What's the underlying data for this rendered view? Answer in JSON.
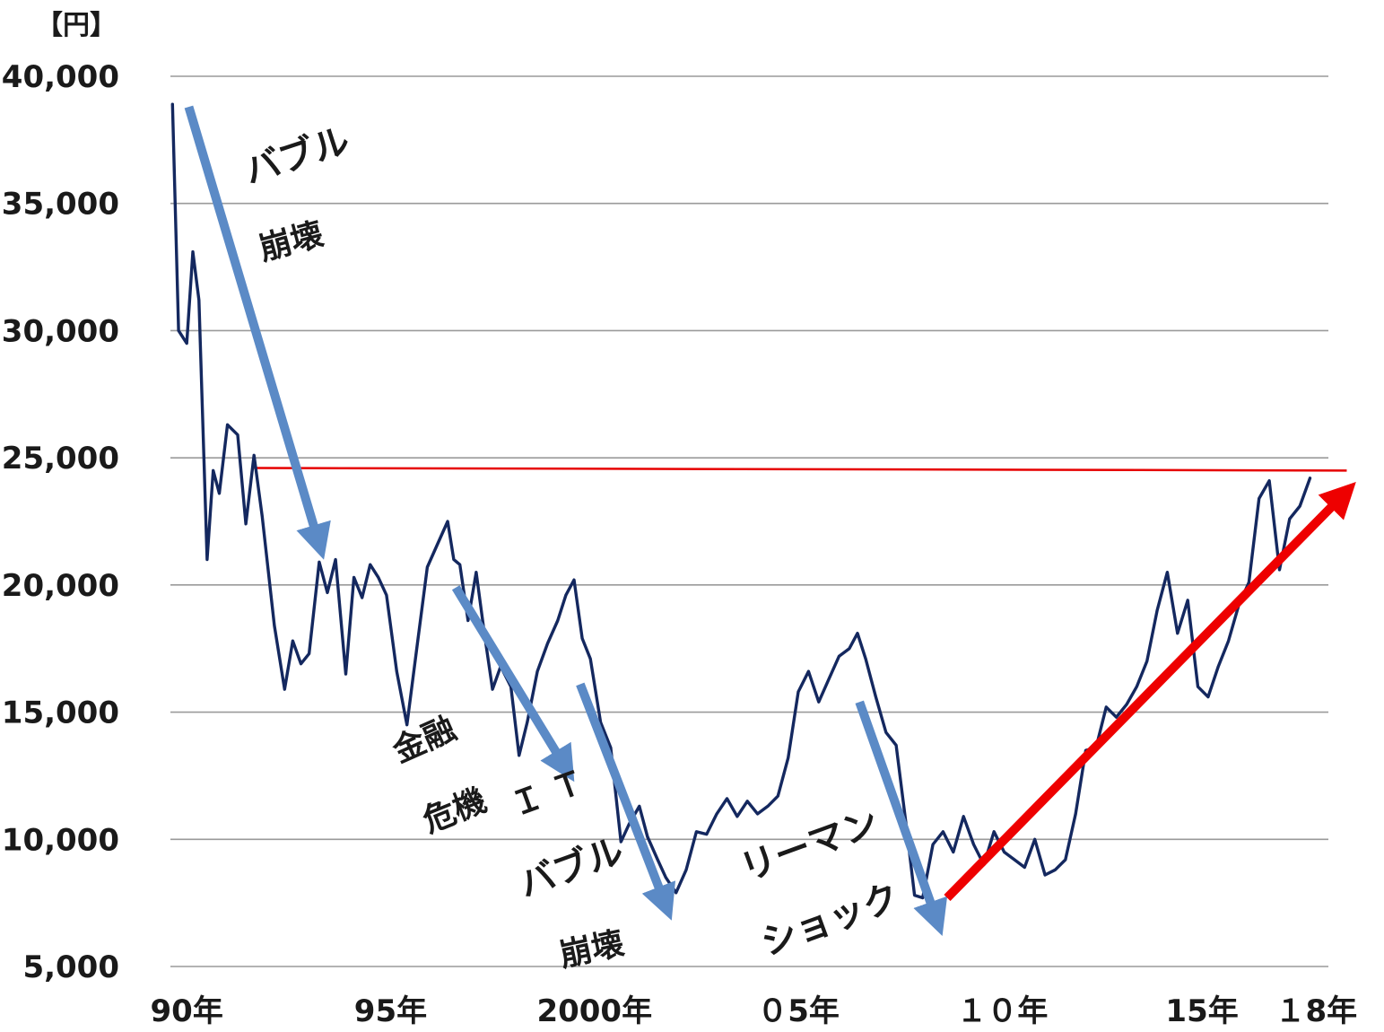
{
  "chart_data": {
    "type": "line",
    "y_unit_label": "【円】",
    "ylim": [
      5000,
      40000
    ],
    "y_ticks": [
      {
        "value": 5000,
        "label": "5,000"
      },
      {
        "value": 10000,
        "label": "10,000"
      },
      {
        "value": 15000,
        "label": "15,000"
      },
      {
        "value": 20000,
        "label": "20,000"
      },
      {
        "value": 25000,
        "label": "25,000"
      },
      {
        "value": 30000,
        "label": "30,000"
      },
      {
        "value": 35000,
        "label": "35,000"
      },
      {
        "value": 40000,
        "label": "40,000"
      }
    ],
    "xlim": [
      1989.9,
      2018.3
    ],
    "x_ticks": [
      {
        "value": 1990.3,
        "label": "90年"
      },
      {
        "value": 1995.3,
        "label": "95年"
      },
      {
        "value": 2000.3,
        "label": "2000年"
      },
      {
        "value": 2005.3,
        "label": "０5年"
      },
      {
        "value": 2010.3,
        "label": "１０年"
      },
      {
        "value": 2015.2,
        "label": "15年"
      },
      {
        "value": 2018.0,
        "label": "１8年"
      }
    ],
    "grid": true,
    "legend": "none",
    "series": [
      {
        "color": "#14285f",
        "points": [
          [
            1989.95,
            38900
          ],
          [
            1990.1,
            30000
          ],
          [
            1990.3,
            29500
          ],
          [
            1990.45,
            33100
          ],
          [
            1990.6,
            31200
          ],
          [
            1990.8,
            21000
          ],
          [
            1990.95,
            24500
          ],
          [
            1991.1,
            23600
          ],
          [
            1991.3,
            26300
          ],
          [
            1991.55,
            25900
          ],
          [
            1991.75,
            22400
          ],
          [
            1991.95,
            25100
          ],
          [
            1992.15,
            22700
          ],
          [
            1992.45,
            18400
          ],
          [
            1992.7,
            15900
          ],
          [
            1992.9,
            17800
          ],
          [
            1993.1,
            16900
          ],
          [
            1993.3,
            17300
          ],
          [
            1993.55,
            20900
          ],
          [
            1993.75,
            19700
          ],
          [
            1993.95,
            21000
          ],
          [
            1994.2,
            16500
          ],
          [
            1994.4,
            20300
          ],
          [
            1994.6,
            19500
          ],
          [
            1994.8,
            20800
          ],
          [
            1995.0,
            20300
          ],
          [
            1995.2,
            19600
          ],
          [
            1995.45,
            16600
          ],
          [
            1995.7,
            14500
          ],
          [
            1995.95,
            17600
          ],
          [
            1996.2,
            20700
          ],
          [
            1996.45,
            21600
          ],
          [
            1996.7,
            22500
          ],
          [
            1996.85,
            21000
          ],
          [
            1997.0,
            20800
          ],
          [
            1997.2,
            18600
          ],
          [
            1997.4,
            20500
          ],
          [
            1997.6,
            18100
          ],
          [
            1997.8,
            15900
          ],
          [
            1998.0,
            16800
          ],
          [
            1998.25,
            16000
          ],
          [
            1998.45,
            13300
          ],
          [
            1998.65,
            14600
          ],
          [
            1998.9,
            16600
          ],
          [
            1999.15,
            17700
          ],
          [
            1999.4,
            18600
          ],
          [
            1999.6,
            19600
          ],
          [
            1999.8,
            20200
          ],
          [
            2000.0,
            17900
          ],
          [
            2000.2,
            17100
          ],
          [
            2000.45,
            14600
          ],
          [
            2000.7,
            13600
          ],
          [
            2000.95,
            9900
          ],
          [
            2001.15,
            10600
          ],
          [
            2001.4,
            11300
          ],
          [
            2001.6,
            10100
          ],
          [
            2001.85,
            9200
          ],
          [
            2002.05,
            8500
          ],
          [
            2002.3,
            7900
          ],
          [
            2002.55,
            8800
          ],
          [
            2002.8,
            10300
          ],
          [
            2003.05,
            10200
          ],
          [
            2003.3,
            11000
          ],
          [
            2003.55,
            11600
          ],
          [
            2003.8,
            10900
          ],
          [
            2004.05,
            11500
          ],
          [
            2004.3,
            11000
          ],
          [
            2004.55,
            11300
          ],
          [
            2004.8,
            11700
          ],
          [
            2005.05,
            13200
          ],
          [
            2005.3,
            15800
          ],
          [
            2005.55,
            16600
          ],
          [
            2005.8,
            15400
          ],
          [
            2006.05,
            16300
          ],
          [
            2006.3,
            17200
          ],
          [
            2006.55,
            17500
          ],
          [
            2006.75,
            18100
          ],
          [
            2006.95,
            17100
          ],
          [
            2007.2,
            15600
          ],
          [
            2007.45,
            14200
          ],
          [
            2007.7,
            13700
          ],
          [
            2007.95,
            10500
          ],
          [
            2008.15,
            7800
          ],
          [
            2008.35,
            7700
          ],
          [
            2008.6,
            9800
          ],
          [
            2008.85,
            10300
          ],
          [
            2009.1,
            9500
          ],
          [
            2009.35,
            10900
          ],
          [
            2009.6,
            9800
          ],
          [
            2009.85,
            9000
          ],
          [
            2010.1,
            10300
          ],
          [
            2010.35,
            9500
          ],
          [
            2010.6,
            9200
          ],
          [
            2010.85,
            8900
          ],
          [
            2011.1,
            10000
          ],
          [
            2011.35,
            8600
          ],
          [
            2011.6,
            8800
          ],
          [
            2011.85,
            9200
          ],
          [
            2012.1,
            11000
          ],
          [
            2012.35,
            13500
          ],
          [
            2012.6,
            13600
          ],
          [
            2012.85,
            15200
          ],
          [
            2013.1,
            14800
          ],
          [
            2013.35,
            15300
          ],
          [
            2013.6,
            16000
          ],
          [
            2013.85,
            17000
          ],
          [
            2014.1,
            19000
          ],
          [
            2014.35,
            20500
          ],
          [
            2014.6,
            18100
          ],
          [
            2014.85,
            19400
          ],
          [
            2015.1,
            16000
          ],
          [
            2015.35,
            15600
          ],
          [
            2015.6,
            16800
          ],
          [
            2015.85,
            17800
          ],
          [
            2016.1,
            19200
          ],
          [
            2016.35,
            20100
          ],
          [
            2016.6,
            23400
          ],
          [
            2016.85,
            24100
          ],
          [
            2017.1,
            20600
          ],
          [
            2017.35,
            22600
          ],
          [
            2017.6,
            23100
          ],
          [
            2017.85,
            24200
          ]
        ]
      }
    ],
    "reference_lines": [
      {
        "color": "#e60000",
        "from": [
          1991.95,
          24600
        ],
        "to": [
          2018.75,
          24500
        ]
      }
    ],
    "trend_arrows": [
      {
        "color": "#5b8ac6",
        "from": [
          1990.35,
          38800
        ],
        "to": [
          1993.55,
          21600
        ]
      },
      {
        "color": "#5b8ac6",
        "from": [
          1996.9,
          19900
        ],
        "to": [
          1999.6,
          12800
        ]
      },
      {
        "color": "#5b8ac6",
        "from": [
          1999.95,
          16100
        ],
        "to": [
          2002.05,
          7400
        ]
      },
      {
        "color": "#5b8ac6",
        "from": [
          2006.8,
          15400
        ],
        "to": [
          2008.7,
          6800
        ]
      },
      {
        "color": "#ee0000",
        "from": [
          2008.95,
          7700
        ],
        "to": [
          2018.7,
          23600
        ]
      }
    ],
    "annotations": [
      {
        "id": "bubble1",
        "text": "バブル"
      },
      {
        "id": "collapse1",
        "text": "崩壊"
      },
      {
        "id": "finance",
        "text": "金融"
      },
      {
        "id": "crisis",
        "text": "危機"
      },
      {
        "id": "it",
        "text": "Ｉ Ｔ"
      },
      {
        "id": "bubble2",
        "text": "バブル"
      },
      {
        "id": "collapse2",
        "text": "崩壊"
      },
      {
        "id": "lehman",
        "text": "リーマン"
      },
      {
        "id": "shock",
        "text": "ショック"
      }
    ]
  }
}
